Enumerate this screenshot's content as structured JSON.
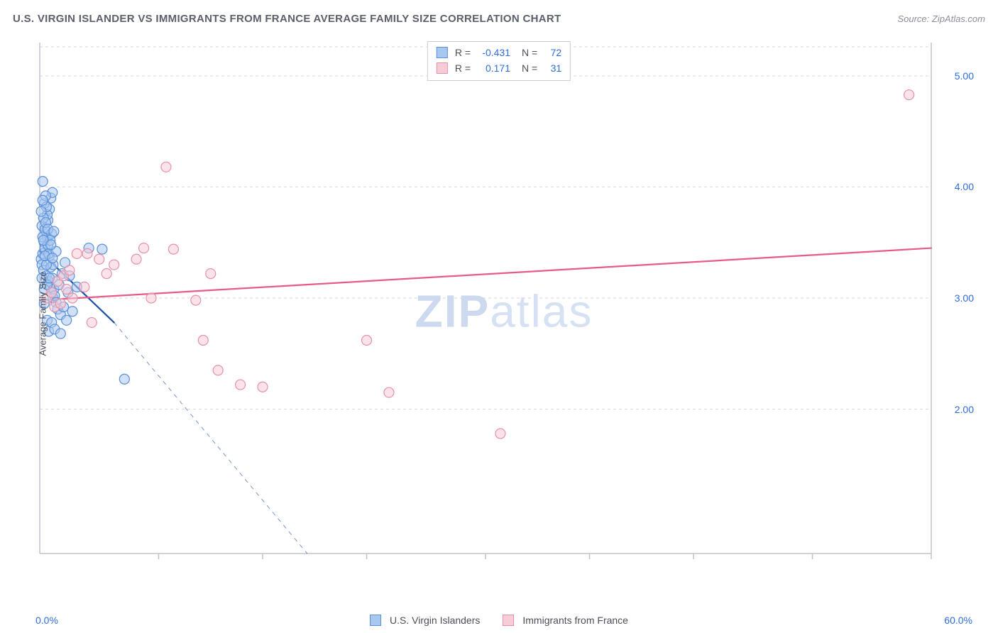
{
  "title": "U.S. VIRGIN ISLANDER VS IMMIGRANTS FROM FRANCE AVERAGE FAMILY SIZE CORRELATION CHART",
  "source_prefix": "Source: ",
  "source": "ZipAtlas.com",
  "watermark_bold": "ZIP",
  "watermark_rest": "atlas",
  "chart": {
    "type": "scatter",
    "xlim": [
      0,
      60
    ],
    "ylim": [
      0.7,
      5.3
    ],
    "x_tick_positions": [
      8,
      15,
      22,
      30,
      37,
      44,
      52,
      60
    ],
    "y_grid": [
      2.0,
      3.0,
      4.0,
      5.0
    ],
    "y_tick_labels": [
      "2.00",
      "3.00",
      "4.00",
      "5.00"
    ],
    "x_end_labels": [
      "0.0%",
      "60.0%"
    ],
    "y_axis_label": "Average Family Size",
    "grid_color": "#d6d9df",
    "axis_color": "#bfc3cc",
    "background_color": "#ffffff",
    "marker_radius": 7,
    "marker_stroke_width": 1.2,
    "line_width_trend": 2.2,
    "series": [
      {
        "key": "usvi",
        "name": "U.S. Virgin Islanders",
        "fill": "#a9c8f0",
        "stroke": "#5a8fd8",
        "trend_color": "#1d4ea8",
        "trend": {
          "x1": 0,
          "y1": 3.42,
          "x2": 5.0,
          "y2": 2.78,
          "dash_to_x": 18.0,
          "dash_to_y": 0.7
        },
        "R": "-0.431",
        "N": "72",
        "points": [
          [
            0.1,
            3.35
          ],
          [
            0.15,
            3.3
          ],
          [
            0.2,
            3.4
          ],
          [
            0.25,
            3.25
          ],
          [
            0.3,
            3.5
          ],
          [
            0.35,
            3.45
          ],
          [
            0.4,
            3.6
          ],
          [
            0.45,
            3.2
          ],
          [
            0.5,
            3.55
          ],
          [
            0.55,
            3.7
          ],
          [
            0.6,
            3.15
          ],
          [
            0.65,
            3.8
          ],
          [
            0.7,
            3.1
          ],
          [
            0.75,
            3.9
          ],
          [
            0.8,
            3.05
          ],
          [
            0.85,
            3.95
          ],
          [
            0.9,
            3.0
          ],
          [
            0.2,
            4.05
          ],
          [
            0.3,
            3.85
          ],
          [
            0.4,
            3.92
          ],
          [
            0.5,
            3.75
          ],
          [
            0.15,
            3.65
          ],
          [
            0.25,
            3.72
          ],
          [
            0.35,
            3.62
          ],
          [
            0.45,
            3.82
          ],
          [
            0.55,
            3.48
          ],
          [
            0.65,
            3.38
          ],
          [
            0.75,
            3.28
          ],
          [
            0.85,
            3.18
          ],
          [
            0.95,
            3.08
          ],
          [
            1.0,
            3.02
          ],
          [
            1.1,
            2.96
          ],
          [
            1.2,
            2.9
          ],
          [
            1.3,
            3.12
          ],
          [
            1.4,
            2.85
          ],
          [
            1.5,
            3.22
          ],
          [
            1.6,
            2.92
          ],
          [
            1.7,
            3.32
          ],
          [
            1.8,
            2.8
          ],
          [
            1.9,
            3.05
          ],
          [
            2.0,
            3.2
          ],
          [
            2.2,
            2.88
          ],
          [
            0.5,
            2.8
          ],
          [
            0.6,
            2.7
          ],
          [
            0.8,
            2.78
          ],
          [
            1.0,
            2.72
          ],
          [
            1.4,
            2.68
          ],
          [
            0.3,
            2.95
          ],
          [
            3.3,
            3.45
          ],
          [
            4.2,
            3.44
          ],
          [
            2.5,
            3.1
          ],
          [
            5.7,
            2.27
          ],
          [
            0.2,
            3.55
          ],
          [
            0.4,
            3.68
          ],
          [
            0.3,
            3.08
          ],
          [
            0.6,
            3.4
          ],
          [
            0.8,
            3.58
          ],
          [
            0.1,
            3.78
          ],
          [
            0.5,
            3.12
          ],
          [
            0.7,
            3.52
          ],
          [
            0.9,
            3.3
          ],
          [
            1.1,
            3.42
          ],
          [
            0.15,
            3.18
          ],
          [
            0.45,
            3.3
          ],
          [
            0.55,
            3.62
          ],
          [
            0.35,
            3.38
          ],
          [
            0.25,
            3.52
          ],
          [
            0.65,
            3.18
          ],
          [
            0.75,
            3.48
          ],
          [
            0.85,
            3.36
          ],
          [
            0.95,
            3.6
          ],
          [
            0.2,
            3.88
          ]
        ]
      },
      {
        "key": "france",
        "name": "Immigrants from France",
        "fill": "#f6cdd7",
        "stroke": "#e790a8",
        "trend_color": "#e85a8a",
        "trend": {
          "x1": 0,
          "y1": 2.98,
          "x2": 60,
          "y2": 3.45
        },
        "R": "0.171",
        "N": "31",
        "points": [
          [
            0.5,
            3.0
          ],
          [
            0.8,
            3.05
          ],
          [
            1.0,
            2.92
          ],
          [
            1.2,
            3.15
          ],
          [
            1.4,
            2.95
          ],
          [
            1.6,
            3.2
          ],
          [
            1.8,
            3.08
          ],
          [
            2.0,
            3.25
          ],
          [
            2.2,
            3.0
          ],
          [
            2.5,
            3.4
          ],
          [
            3.0,
            3.1
          ],
          [
            3.2,
            3.4
          ],
          [
            3.5,
            2.78
          ],
          [
            4.0,
            3.35
          ],
          [
            4.5,
            3.22
          ],
          [
            5.0,
            3.3
          ],
          [
            6.5,
            3.35
          ],
          [
            7.0,
            3.45
          ],
          [
            8.5,
            4.18
          ],
          [
            9.0,
            3.44
          ],
          [
            10.5,
            2.98
          ],
          [
            11.0,
            2.62
          ],
          [
            11.5,
            3.22
          ],
          [
            12.0,
            2.35
          ],
          [
            13.5,
            2.22
          ],
          [
            15.0,
            2.2
          ],
          [
            22.0,
            2.62
          ],
          [
            23.5,
            2.15
          ],
          [
            31.0,
            1.78
          ],
          [
            58.5,
            4.83
          ],
          [
            7.5,
            3.0
          ]
        ]
      }
    ],
    "bottom_legend": [
      {
        "swatch_fill": "#a9c8f0",
        "swatch_stroke": "#5a8fd8",
        "label": "U.S. Virgin Islanders"
      },
      {
        "swatch_fill": "#f6cdd7",
        "swatch_stroke": "#e790a8",
        "label": "Immigrants from France"
      }
    ],
    "stats_box": {
      "rows": [
        {
          "swatch_fill": "#a9c8f0",
          "swatch_stroke": "#5a8fd8",
          "R": "-0.431",
          "N": "72"
        },
        {
          "swatch_fill": "#f6cdd7",
          "swatch_stroke": "#e790a8",
          "R": "0.171",
          "N": "31"
        }
      ],
      "labels": {
        "R": "R =",
        "N": "N ="
      }
    }
  }
}
